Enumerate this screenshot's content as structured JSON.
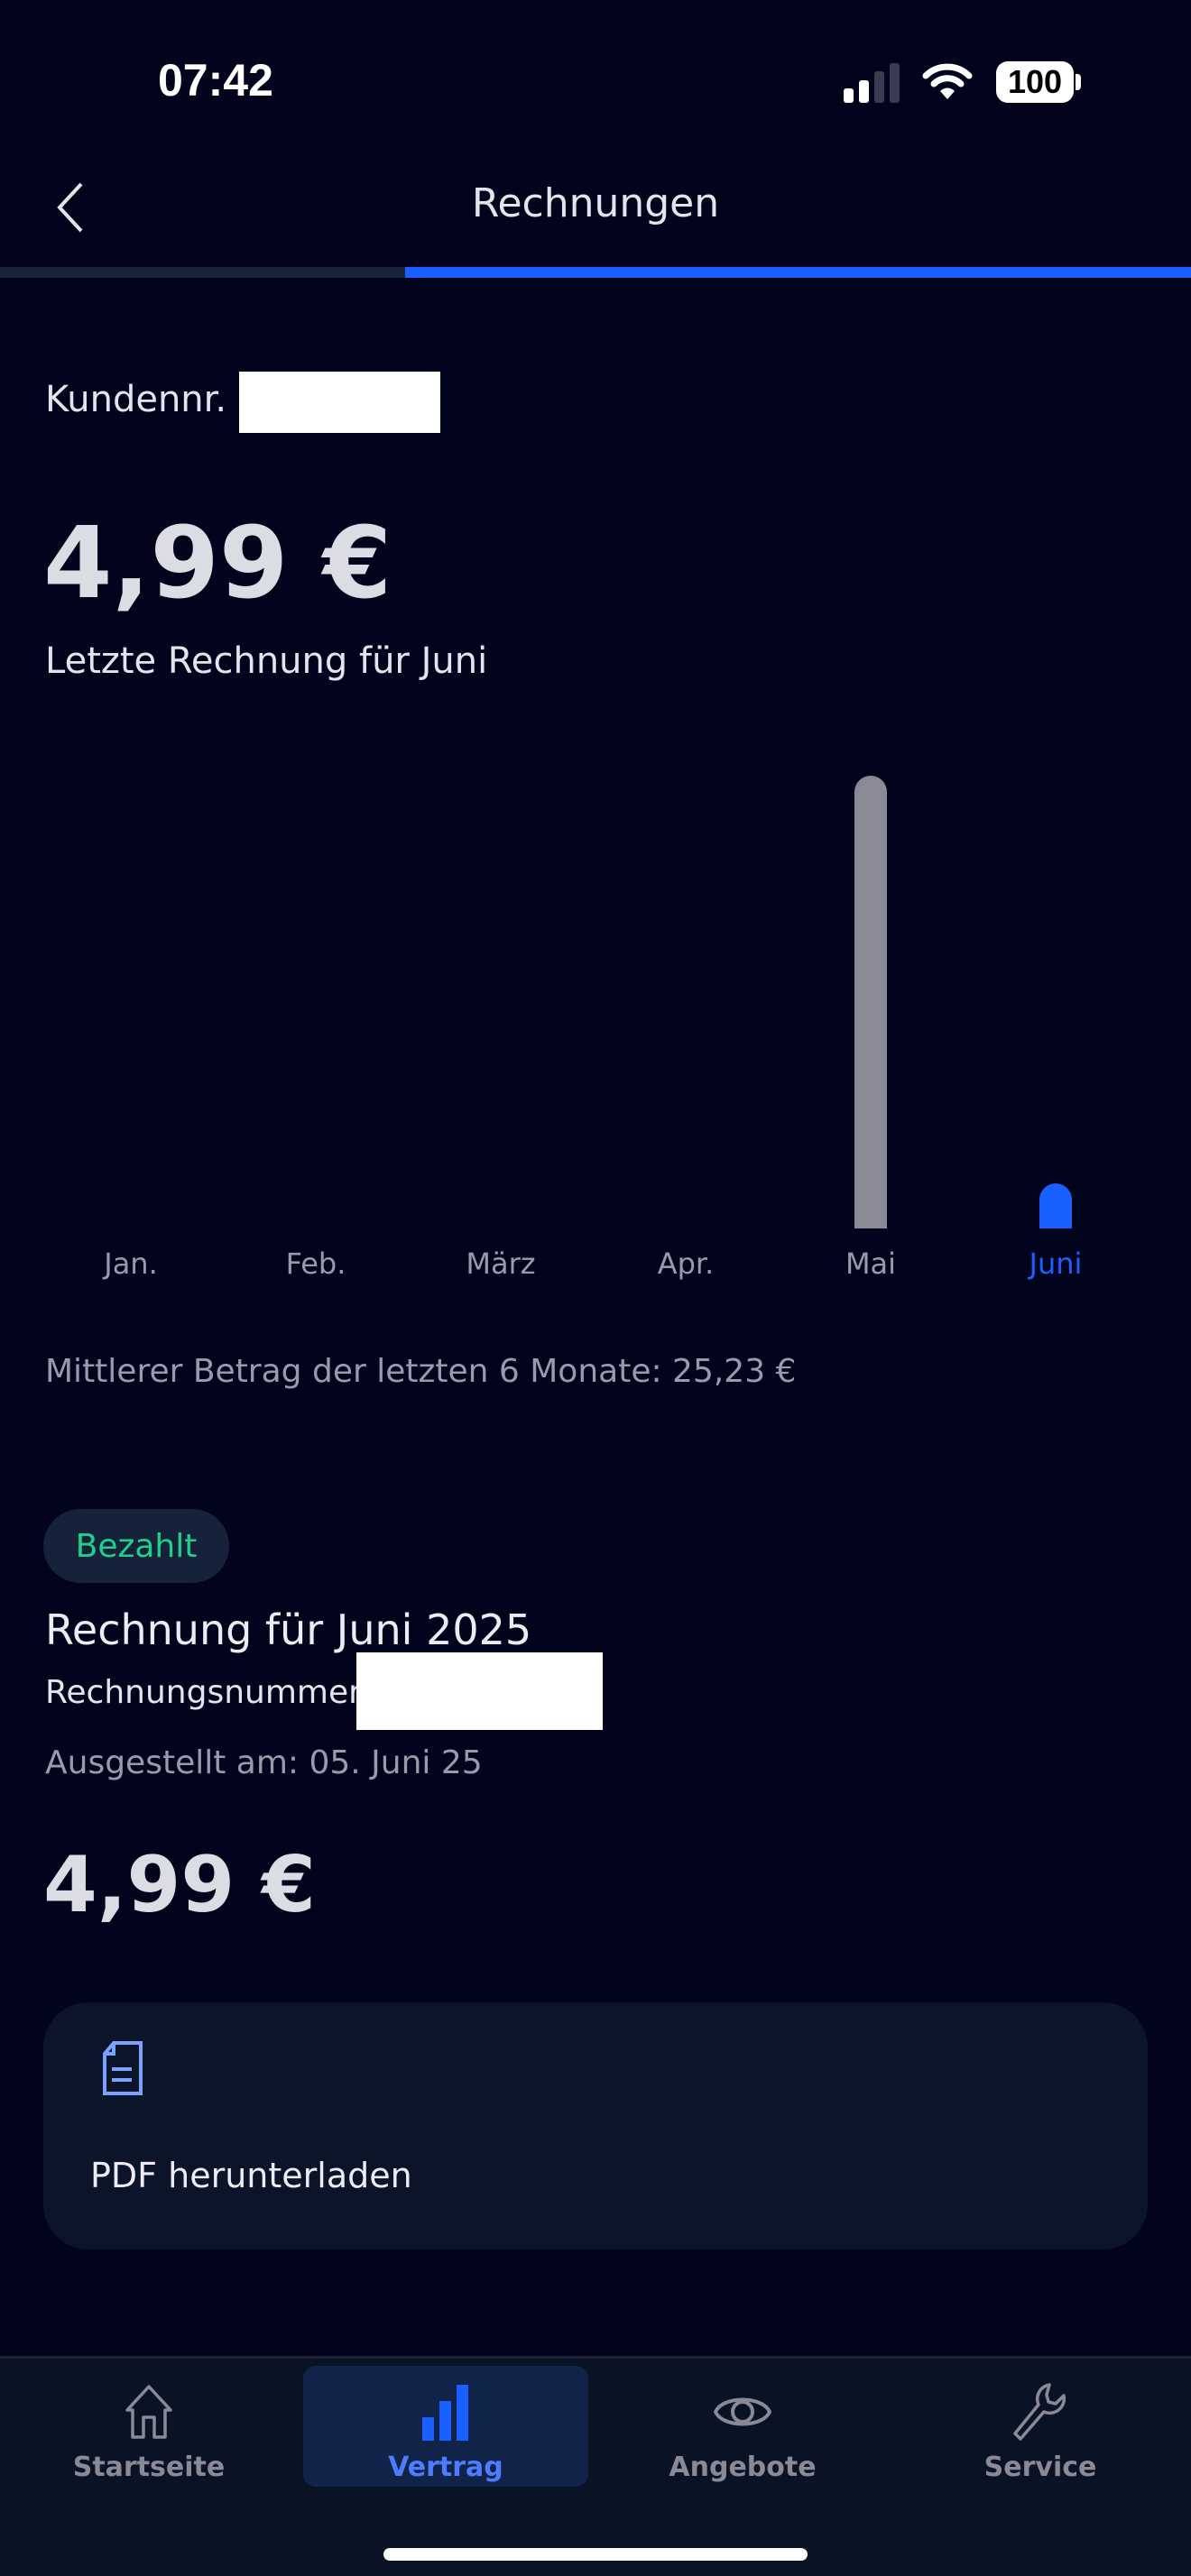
{
  "status_bar": {
    "time": "07:42",
    "battery": "100"
  },
  "header": {
    "title": "Rechnungen",
    "back_icon": "chevron-left-icon",
    "progress": 0.66
  },
  "customer": {
    "label": "Kundennr."
  },
  "latest": {
    "amount": "4,99 €",
    "label": "Letzte Rechnung für Juni"
  },
  "chart_data": {
    "type": "bar",
    "categories": [
      "Jan.",
      "Feb.",
      "März",
      "Apr.",
      "Mai",
      "Juni"
    ],
    "values": [
      0,
      0,
      0,
      0,
      146.39,
      4.99
    ],
    "highlight": "Juni",
    "colors": {
      "default": "#8a8a96",
      "highlight": "#1a5fff"
    }
  },
  "average": "Mittlerer Betrag der letzten 6 Monate: 25,23 €",
  "invoice": {
    "status": "Bezahlt",
    "status_color": "#1ed18a",
    "title": "Rechnung für Juni 2025",
    "number_label": "Rechnungsnummer",
    "issued": "Ausgestellt am: 05. Juni 25",
    "amount": "4,99 €",
    "pdf_label": "PDF herunterladen",
    "pdf_icon": "document-icon"
  },
  "tabs": [
    {
      "label": "Startseite",
      "icon": "home-icon"
    },
    {
      "label": "Vertrag",
      "icon": "bar-chart-icon",
      "active": true
    },
    {
      "label": "Angebote",
      "icon": "eye-icon"
    },
    {
      "label": "Service",
      "icon": "wrench-icon"
    }
  ]
}
